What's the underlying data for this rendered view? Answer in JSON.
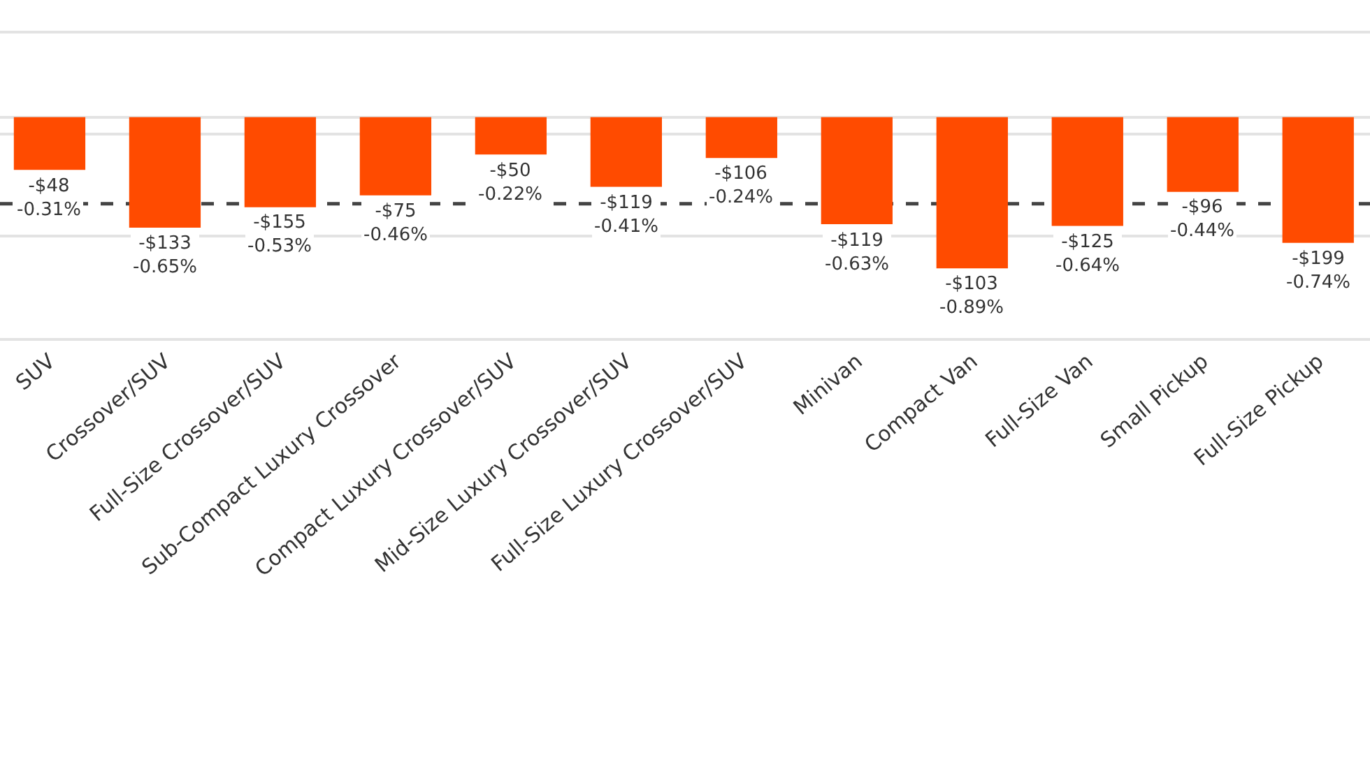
{
  "chart_data": {
    "type": "bar",
    "categories": [
      "SUV",
      "Crossover/SUV",
      "Full-Size Crossover/SUV",
      "Sub-Compact Luxury Crossover",
      "Compact Luxury Crossover/SUV",
      "Mid-Size Luxury Crossover/SUV",
      "Full-Size Luxury Crossover/SUV",
      "Minivan",
      "Compact Van",
      "Full-Size Van",
      "Small Pickup",
      "Full-Size Pickup"
    ],
    "series": [
      {
        "color": "#ff4b00",
        "values": [
          -0.31,
          -0.65,
          -0.53,
          -0.46,
          -0.22,
          -0.41,
          -0.24,
          -0.63,
          -0.89,
          -0.64,
          -0.44,
          -0.74
        ],
        "value_labels": [
          "-$48\n-0.31%",
          "-$133\n-0.65%",
          "-$155\n-0.53%",
          "-$75\n-0.46%",
          "-$50\n-0.22%",
          "-$119\n-0.41%",
          "-$106\n-0.24%",
          "-$119\n-0.63%",
          "-$103\n-0.89%",
          "-$125\n-0.64%",
          "-$96\n-0.44%",
          "-$199\n-0.74%"
        ]
      }
    ],
    "ylim": [
      -1.3,
      0.69
    ],
    "yticks": [
      {
        "value": 0.5,
        "label": null
      },
      {
        "value": 0,
        "label": null
      },
      {
        "value": -0.1,
        "label": null
      },
      {
        "value": -0.7,
        "label": null
      }
    ],
    "ref_lines": [
      {
        "axis": "y",
        "value": -0.51,
        "color": "#444444",
        "line_style": "dashed"
      }
    ],
    "grid": "y",
    "tick_labels": "x"
  }
}
